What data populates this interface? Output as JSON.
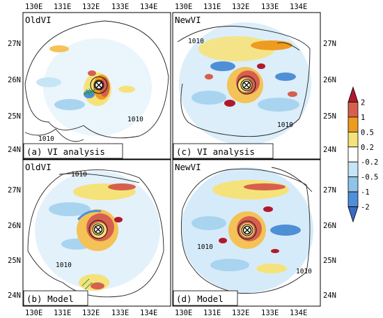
{
  "lon_ticks": [
    "130E",
    "131E",
    "132E",
    "133E",
    "134E"
  ],
  "lat_ticks": [
    "27N",
    "26N",
    "25N",
    "24N"
  ],
  "panels": [
    {
      "id": "a",
      "title": "OldVI",
      "caption": "(a) VI analysis",
      "isobars": [
        "1010",
        "1010"
      ]
    },
    {
      "id": "c",
      "title": "NewVI",
      "caption": "(c) VI analysis",
      "isobars": [
        "1010",
        "1010"
      ]
    },
    {
      "id": "b",
      "title": "OldVI",
      "caption": "(b) Model",
      "isobars": [
        "1010",
        "1010"
      ]
    },
    {
      "id": "d",
      "title": "NewVI",
      "caption": "(d) Model",
      "isobars": [
        "1010",
        "1010"
      ]
    }
  ],
  "colorbar": {
    "labels": [
      "2",
      "1",
      "0.5",
      "0.2",
      "-0.2",
      "-0.5",
      "-1",
      "-2"
    ],
    "colors": [
      "#b2182b",
      "#d6604d",
      "#ef9b20",
      "#f6e27a",
      "#ffffff",
      "#c6e5f5",
      "#8fc3ea",
      "#4f8fd6",
      "#3a6bc2"
    ]
  },
  "colors": {
    "positive_high": "#b2182b",
    "positive_mid": "#d6604d",
    "positive_low": "#f4c257",
    "negative_low": "#a9d4f0",
    "negative_high": "#4f8fd6",
    "track": "#2e9a3f"
  }
}
